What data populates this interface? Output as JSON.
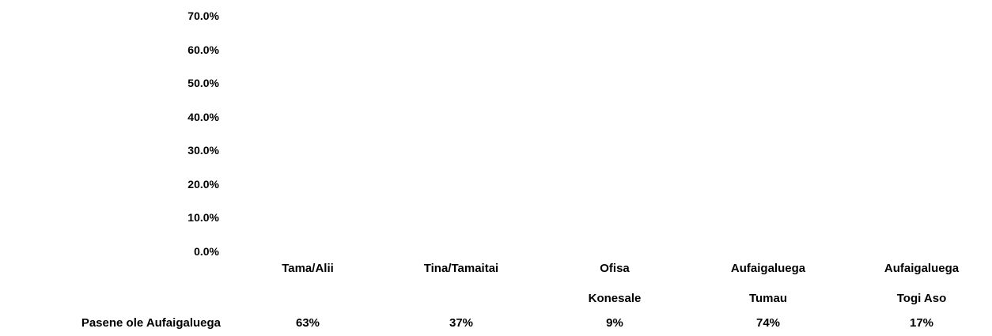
{
  "chart_data": {
    "type": "bar",
    "categories": [
      "Tama/Alii",
      "Tina/Tamaitai",
      "Ofisa Konesale",
      "Aufaigaluega Tumau",
      "Aufaigaluega Togi Aso"
    ],
    "series": [
      {
        "name": "Pasene ole Aufaigaluega",
        "color": "#ffffff",
        "values": [
          63,
          37,
          9,
          74,
          17
        ],
        "value_labels": [
          "63%",
          "37%",
          "9%",
          "74%",
          "17%"
        ]
      }
    ],
    "ylim": [
      0,
      70
    ],
    "yticks": [
      {
        "value": 0,
        "label": "0.0%"
      },
      {
        "value": 10,
        "label": "10.0%"
      },
      {
        "value": 20,
        "label": "20.0%"
      },
      {
        "value": 30,
        "label": "30.0%"
      },
      {
        "value": 40,
        "label": "40.0%"
      },
      {
        "value": 50,
        "label": "50.0%"
      },
      {
        "value": 60,
        "label": "60.0%"
      },
      {
        "value": 70,
        "label": "70.0%"
      }
    ],
    "grid": false
  }
}
